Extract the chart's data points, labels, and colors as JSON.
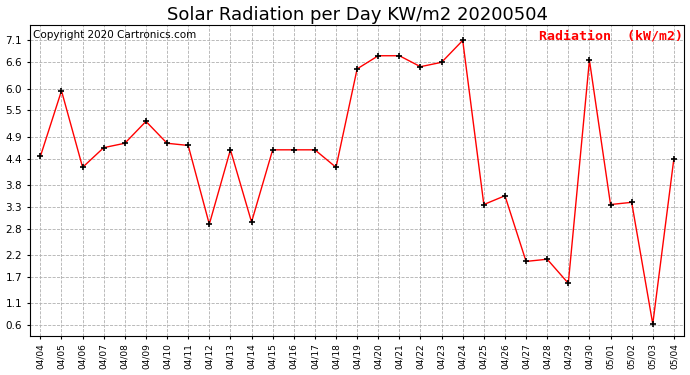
{
  "title": "Solar Radiation per Day KW/m2 20200504",
  "copyright": "Copyright 2020 Cartronics.com",
  "legend_label": "Radiation  (kW/m2)",
  "dates": [
    "04/04",
    "04/05",
    "04/06",
    "04/07",
    "04/08",
    "04/09",
    "04/10",
    "04/11",
    "04/12",
    "04/13",
    "04/14",
    "04/15",
    "04/16",
    "04/17",
    "04/18",
    "04/19",
    "04/20",
    "04/21",
    "04/22",
    "04/23",
    "04/24",
    "04/25",
    "04/26",
    "04/27",
    "04/28",
    "04/29",
    "04/30",
    "05/01",
    "05/02",
    "05/03",
    "05/04"
  ],
  "values": [
    4.45,
    5.95,
    4.2,
    4.65,
    4.75,
    5.25,
    4.75,
    4.7,
    2.9,
    4.6,
    2.95,
    4.6,
    4.6,
    4.6,
    4.2,
    6.45,
    6.75,
    6.75,
    6.5,
    6.6,
    7.1,
    3.35,
    3.55,
    2.05,
    2.1,
    1.55,
    6.65,
    3.35,
    3.4,
    0.62,
    4.4
  ],
  "ylim": [
    0.35,
    7.45
  ],
  "yticks": [
    0.6,
    1.1,
    1.7,
    2.2,
    2.8,
    3.3,
    3.8,
    4.4,
    4.9,
    5.5,
    6.0,
    6.6,
    7.1
  ],
  "line_color": "red",
  "marker_color": "black",
  "grid_color": "#b0b0b0",
  "bg_color": "white",
  "title_fontsize": 13,
  "copyright_fontsize": 7.5,
  "legend_fontsize": 9.5
}
